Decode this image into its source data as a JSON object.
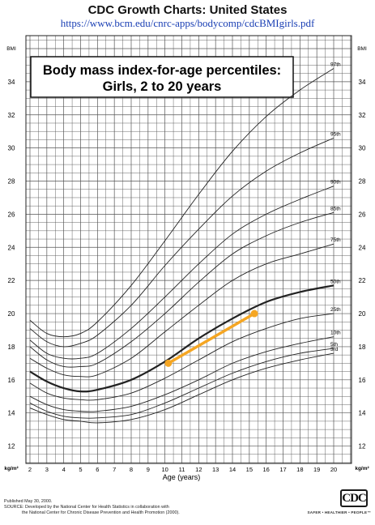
{
  "header": {
    "title": "CDC Growth Charts: United States",
    "url": "https://www.bcm.edu/cnrc-apps/bodycomp/cdcBMIgirls.pdf"
  },
  "chart_data": {
    "type": "line",
    "title": "Body mass index-for-age percentiles:",
    "subtitle": "Girls, 2 to 20 years",
    "xlabel": "Age (years)",
    "ylabel": "BMI",
    "y_unit": "kg/m²",
    "xlim": [
      2,
      20
    ],
    "ylim": [
      11,
      36
    ],
    "x_ticks": [
      2,
      3,
      4,
      5,
      6,
      7,
      8,
      9,
      10,
      11,
      12,
      13,
      14,
      15,
      16,
      17,
      18,
      19,
      20
    ],
    "y_ticks": [
      12,
      14,
      16,
      18,
      20,
      22,
      24,
      26,
      28,
      30,
      32,
      34
    ],
    "grid": true,
    "series": [
      {
        "name": "3rd",
        "x": [
          2,
          3,
          4,
          5,
          6,
          8,
          10,
          12,
          14,
          16,
          18,
          20
        ],
        "y": [
          14.3,
          13.9,
          13.6,
          13.5,
          13.4,
          13.6,
          14.2,
          15.1,
          16.0,
          16.7,
          17.2,
          17.6
        ]
      },
      {
        "name": "5th",
        "x": [
          2,
          3,
          4,
          5,
          6,
          8,
          10,
          12,
          14,
          16,
          18,
          20
        ],
        "y": [
          14.6,
          14.1,
          13.8,
          13.7,
          13.7,
          13.9,
          14.6,
          15.5,
          16.4,
          17.1,
          17.6,
          17.9
        ]
      },
      {
        "name": "10th",
        "x": [
          2,
          3,
          4,
          5,
          6,
          8,
          10,
          12,
          14,
          16,
          18,
          20
        ],
        "y": [
          15.0,
          14.5,
          14.2,
          14.1,
          14.1,
          14.4,
          15.1,
          16.0,
          17.0,
          17.7,
          18.2,
          18.6
        ]
      },
      {
        "name": "25th",
        "x": [
          2,
          3,
          4,
          5,
          6,
          8,
          10,
          12,
          14,
          16,
          18,
          20
        ],
        "y": [
          15.8,
          15.2,
          14.9,
          14.8,
          14.8,
          15.2,
          16.1,
          17.2,
          18.3,
          19.1,
          19.7,
          20.0
        ]
      },
      {
        "name": "50th",
        "x": [
          2,
          3,
          4,
          5,
          6,
          8,
          10,
          12,
          14,
          16,
          18,
          20
        ],
        "y": [
          16.5,
          15.9,
          15.5,
          15.3,
          15.4,
          16.0,
          17.1,
          18.5,
          19.7,
          20.7,
          21.3,
          21.7
        ]
      },
      {
        "name": "75th",
        "x": [
          2,
          3,
          4,
          5,
          6,
          8,
          10,
          12,
          14,
          16,
          18,
          20
        ],
        "y": [
          17.3,
          16.7,
          16.3,
          16.2,
          16.3,
          17.3,
          18.9,
          20.5,
          22.0,
          23.0,
          23.6,
          24.2
        ]
      },
      {
        "name": "85th",
        "x": [
          2,
          3,
          4,
          5,
          6,
          8,
          10,
          12,
          14,
          16,
          18,
          20
        ],
        "y": [
          18.0,
          17.2,
          16.8,
          16.8,
          17.0,
          18.3,
          20.0,
          21.9,
          23.6,
          24.7,
          25.5,
          26.1
        ]
      },
      {
        "name": "90th",
        "x": [
          2,
          3,
          4,
          5,
          6,
          8,
          10,
          12,
          14,
          16,
          18,
          20
        ],
        "y": [
          18.4,
          17.6,
          17.3,
          17.3,
          17.6,
          19.1,
          21.0,
          23.0,
          24.8,
          26.0,
          26.9,
          27.7
        ]
      },
      {
        "name": "95th",
        "x": [
          2,
          3,
          4,
          5,
          6,
          8,
          10,
          12,
          14,
          16,
          18,
          20
        ],
        "y": [
          19.1,
          18.3,
          18.0,
          18.2,
          18.7,
          20.5,
          22.9,
          25.1,
          27.1,
          28.6,
          29.7,
          30.6
        ]
      },
      {
        "name": "97th",
        "x": [
          2,
          3,
          4,
          5,
          6,
          8,
          10,
          12,
          14,
          16,
          18,
          20
        ],
        "y": [
          19.6,
          18.8,
          18.6,
          18.8,
          19.5,
          21.7,
          24.4,
          27.2,
          29.8,
          31.9,
          33.5,
          34.8
        ]
      }
    ],
    "highlight": {
      "x": [
        10.2,
        15.3
      ],
      "y": [
        17.0,
        20.0
      ],
      "color": "#f5a623"
    }
  },
  "footer": {
    "published": "Published May 30, 2000.",
    "source_line1": "SOURCE: Developed by the National Center for Health Statistics in collaboration with",
    "source_line2": "the National Center for Chronic Disease Prevention and Health Promotion (2000).",
    "logo": "CDC",
    "tagline": "SAFER • HEALTHIER • PEOPLE™"
  },
  "colors": {
    "line": "#222222",
    "grid": "#555555",
    "url": "#1a3fb4",
    "highlight": "#f5a623"
  }
}
